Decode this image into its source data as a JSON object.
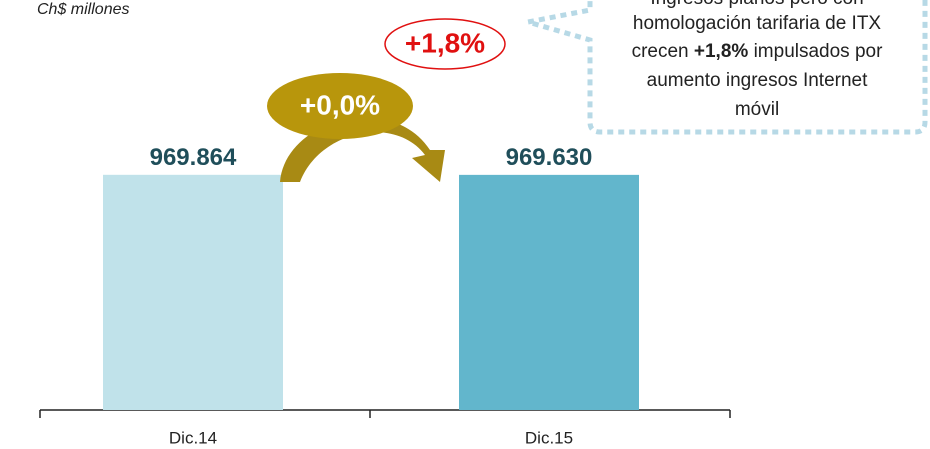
{
  "chart_data": {
    "type": "bar",
    "subtitle": "Ch$ millones",
    "categories": [
      "Dic.14",
      "Dic.15"
    ],
    "values": [
      969864,
      969630
    ],
    "value_labels": [
      "969.864",
      "969.630"
    ],
    "colors": [
      "#c0e2ea",
      "#62b6cc"
    ],
    "ylim": [
      0,
      1200000
    ],
    "annotations": [
      "+0,0%",
      "+1,8%"
    ],
    "callout": {
      "lines": [
        "Ingresos planos pero con",
        "homologación tarifaria de ITX",
        {
          "before": "crecen ",
          "bold": "+1,8%",
          "after": " impulsados por"
        },
        "aumento ingresos Internet",
        "móvil"
      ]
    }
  }
}
